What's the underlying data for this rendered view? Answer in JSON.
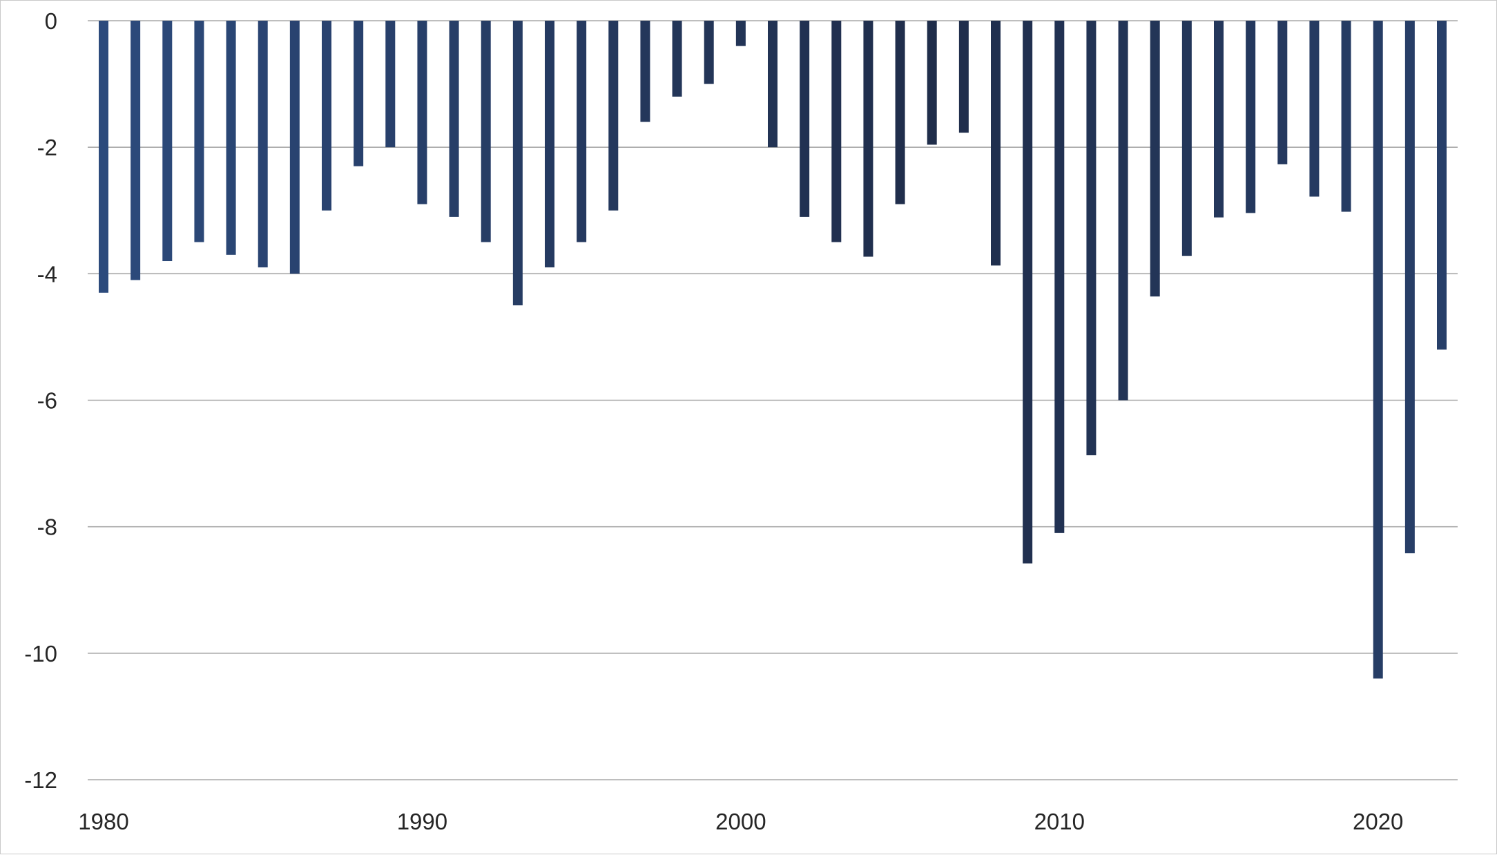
{
  "chart_data": {
    "type": "bar",
    "title": "",
    "xlabel": "",
    "ylabel": "",
    "x": [
      1980,
      1981,
      1982,
      1983,
      1984,
      1985,
      1986,
      1987,
      1988,
      1989,
      1990,
      1991,
      1992,
      1993,
      1994,
      1995,
      1996,
      1997,
      1998,
      1999,
      2000,
      2001,
      2002,
      2003,
      2004,
      2005,
      2006,
      2007,
      2008,
      2009,
      2010,
      2011,
      2012,
      2013,
      2014,
      2015,
      2016,
      2017,
      2018,
      2019,
      2020,
      2021,
      2022
    ],
    "values": [
      -4.3,
      -4.1,
      -3.8,
      -3.5,
      -3.7,
      -3.9,
      -4.0,
      -3.0,
      -2.3,
      -2.0,
      -2.9,
      -3.1,
      -3.5,
      -4.5,
      -3.9,
      -3.5,
      -3.0,
      -1.6,
      -1.2,
      -1.0,
      -0.4,
      -2.0,
      -3.1,
      -3.5,
      -3.73,
      -2.9,
      -1.96,
      -1.77,
      -3.87,
      -8.58,
      -8.1,
      -6.87,
      -6.0,
      -4.36,
      -3.72,
      -3.11,
      -3.04,
      -2.27,
      -2.78,
      -3.02,
      -10.4,
      -8.42,
      -5.2
    ],
    "ylim": [
      -12,
      0
    ],
    "y_ticks": [
      "0",
      "-2",
      "-4",
      "-6",
      "-8",
      "-10",
      "-12"
    ],
    "x_tick_labels": [
      "1980",
      "1990",
      "2000",
      "2010",
      "2020"
    ],
    "grid": true,
    "legend": "none",
    "colors": {
      "bar_light": "#2c4a7c",
      "bar_dark": "#1f2d4a",
      "grid": "#a8a8a8",
      "text": "#262626"
    }
  }
}
